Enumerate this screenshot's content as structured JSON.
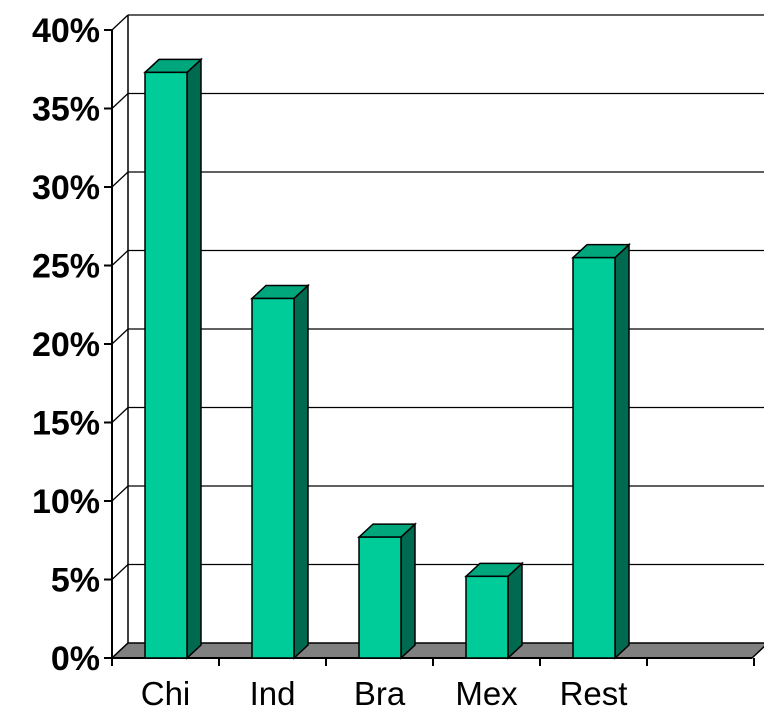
{
  "chart_data": {
    "type": "bar",
    "title": "",
    "xlabel": "",
    "ylabel": "",
    "categories": [
      "Chi",
      "Ind",
      "Bra",
      "Mex",
      "Rest"
    ],
    "values": [
      37.3,
      22.9,
      7.7,
      5.2,
      25.5
    ],
    "ylim": [
      0,
      40
    ],
    "yticks": [
      0,
      5,
      10,
      15,
      20,
      25,
      30,
      35,
      40
    ],
    "ytick_labels": [
      "0%",
      "5%",
      "10%",
      "15%",
      "20%",
      "25%",
      "30%",
      "35%",
      "40%"
    ],
    "grid": true,
    "legend": "none",
    "style": "3d",
    "colors": {
      "bar_front": "#00CC99",
      "bar_top": "#00A77D",
      "bar_side": "#006A50",
      "floor": "#808080",
      "gridline": "#000000"
    }
  }
}
